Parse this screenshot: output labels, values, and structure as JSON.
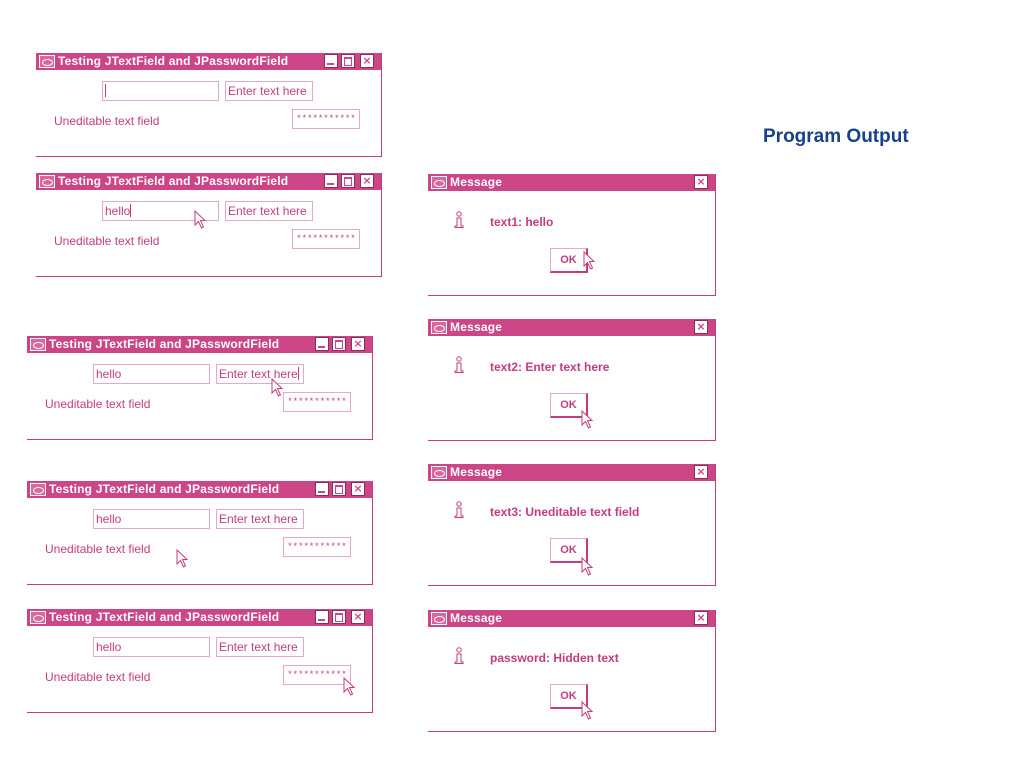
{
  "page": {
    "heading": "Program Output"
  },
  "main_window": {
    "title": "Testing JTextField and JPasswordField",
    "uneditable_label": "Uneditable text field",
    "field2_value": "Enter text here",
    "password_mask": "***********"
  },
  "frames": [
    {
      "field1_value": ""
    },
    {
      "field1_value": "hello"
    },
    {
      "field1_value": "hello"
    },
    {
      "field1_value": "hello"
    },
    {
      "field1_value": "hello"
    }
  ],
  "message_dialogs": [
    {
      "title": "Message",
      "text": "text1: hello",
      "ok_label": "OK"
    },
    {
      "title": "Message",
      "text": "text2: Enter text here",
      "ok_label": "OK"
    },
    {
      "title": "Message",
      "text": "text3: Uneditable text field",
      "ok_label": "OK"
    },
    {
      "title": "Message",
      "text": "password: Hidden text",
      "ok_label": "OK"
    }
  ],
  "colors": {
    "accent": "#cc4587",
    "text": "#c43c7e",
    "heading": "#17418c"
  }
}
